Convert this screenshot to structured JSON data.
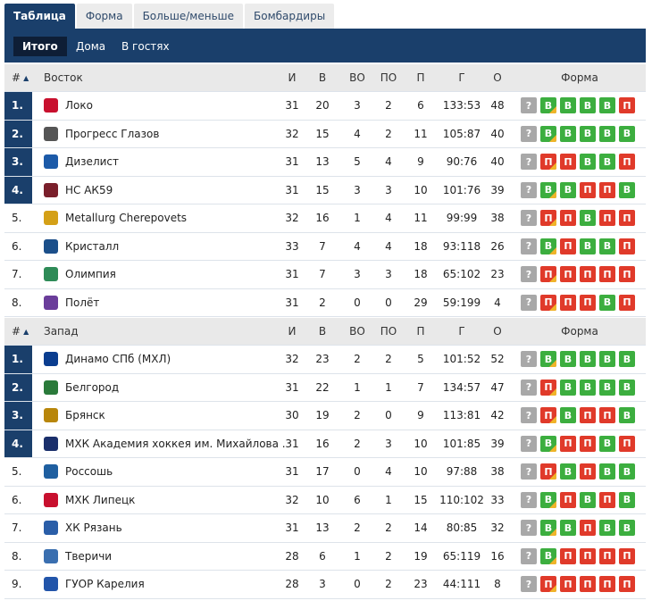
{
  "top_tabs": [
    "Таблица",
    "Форма",
    "Больше/меньше",
    "Бомбардиры"
  ],
  "sub_tabs": [
    "Итого",
    "Дома",
    "В гостях"
  ],
  "header_cols": {
    "rank": "#",
    "sort_icon": "triangle-up",
    "played": "И",
    "wins": "В",
    "ot_wins": "ВО",
    "ot_losses": "ПО",
    "losses": "П",
    "goals": "Г",
    "points": "О",
    "form": "Форма"
  },
  "form_unknown": "?",
  "conferences": [
    {
      "name": "Восток",
      "teams": [
        {
          "rank": "1.",
          "name": "Локо",
          "played": "31",
          "wins": "20",
          "ot_wins": "3",
          "ot_losses": "2",
          "losses": "6",
          "goals": "133:53",
          "points": "48",
          "form": [
            "В",
            "В",
            "В",
            "В",
            "П"
          ],
          "highlight": true,
          "logo_color": "#c8102e"
        },
        {
          "rank": "2.",
          "name": "Прогресс Глазов",
          "played": "32",
          "wins": "15",
          "ot_wins": "4",
          "ot_losses": "2",
          "losses": "11",
          "goals": "105:87",
          "points": "40",
          "form": [
            "В",
            "В",
            "В",
            "В",
            "В"
          ],
          "highlight": true,
          "logo_color": "#555555"
        },
        {
          "rank": "3.",
          "name": "Дизелист",
          "played": "31",
          "wins": "13",
          "ot_wins": "5",
          "ot_losses": "4",
          "losses": "9",
          "goals": "90:76",
          "points": "40",
          "form": [
            "П",
            "П",
            "В",
            "В",
            "П"
          ],
          "highlight": true,
          "logo_color": "#1c5aa8"
        },
        {
          "rank": "4.",
          "name": "НС АК59",
          "played": "31",
          "wins": "15",
          "ot_wins": "3",
          "ot_losses": "3",
          "losses": "10",
          "goals": "101:76",
          "points": "39",
          "form": [
            "В",
            "В",
            "П",
            "П",
            "В"
          ],
          "highlight": true,
          "logo_color": "#7a1f2b"
        },
        {
          "rank": "5.",
          "name": "Metallurg Cherepovets",
          "played": "32",
          "wins": "16",
          "ot_wins": "1",
          "ot_losses": "4",
          "losses": "11",
          "goals": "99:99",
          "points": "38",
          "form": [
            "П",
            "П",
            "В",
            "П",
            "П"
          ],
          "highlight": false,
          "logo_color": "#d4a017"
        },
        {
          "rank": "6.",
          "name": "Кристалл",
          "played": "33",
          "wins": "7",
          "ot_wins": "4",
          "ot_losses": "4",
          "losses": "18",
          "goals": "93:118",
          "points": "26",
          "form": [
            "В",
            "П",
            "В",
            "В",
            "П"
          ],
          "highlight": false,
          "logo_color": "#1b4f8a"
        },
        {
          "rank": "7.",
          "name": "Олимпия",
          "played": "31",
          "wins": "7",
          "ot_wins": "3",
          "ot_losses": "3",
          "losses": "18",
          "goals": "65:102",
          "points": "23",
          "form": [
            "П",
            "П",
            "П",
            "П",
            "П"
          ],
          "highlight": false,
          "logo_color": "#2e8b57"
        },
        {
          "rank": "8.",
          "name": "Полёт",
          "played": "31",
          "wins": "2",
          "ot_wins": "0",
          "ot_losses": "0",
          "losses": "29",
          "goals": "59:199",
          "points": "4",
          "form": [
            "П",
            "П",
            "П",
            "В",
            "П"
          ],
          "highlight": false,
          "logo_color": "#6a3d9a"
        }
      ]
    },
    {
      "name": "Запад",
      "teams": [
        {
          "rank": "1.",
          "name": "Динамо СПб (МХЛ)",
          "played": "32",
          "wins": "23",
          "ot_wins": "2",
          "ot_losses": "2",
          "losses": "5",
          "goals": "101:52",
          "points": "52",
          "form": [
            "В",
            "В",
            "В",
            "В",
            "В"
          ],
          "highlight": true,
          "logo_color": "#0a3d8f"
        },
        {
          "rank": "2.",
          "name": "Белгород",
          "played": "31",
          "wins": "22",
          "ot_wins": "1",
          "ot_losses": "1",
          "losses": "7",
          "goals": "134:57",
          "points": "47",
          "form": [
            "П",
            "В",
            "В",
            "В",
            "В"
          ],
          "highlight": true,
          "logo_color": "#2a7a3a"
        },
        {
          "rank": "3.",
          "name": "Брянск",
          "played": "30",
          "wins": "19",
          "ot_wins": "2",
          "ot_losses": "0",
          "losses": "9",
          "goals": "113:81",
          "points": "42",
          "form": [
            "П",
            "В",
            "П",
            "П",
            "В"
          ],
          "highlight": true,
          "logo_color": "#b8860b"
        },
        {
          "rank": "4.",
          "name": "МХК Академия хоккея им. Михайлова ...",
          "played": "31",
          "wins": "16",
          "ot_wins": "2",
          "ot_losses": "3",
          "losses": "10",
          "goals": "101:85",
          "points": "39",
          "form": [
            "В",
            "П",
            "П",
            "В",
            "П"
          ],
          "highlight": true,
          "logo_color": "#1a2f6b"
        },
        {
          "rank": "5.",
          "name": "Россошь",
          "played": "31",
          "wins": "17",
          "ot_wins": "0",
          "ot_losses": "4",
          "losses": "10",
          "goals": "97:88",
          "points": "38",
          "form": [
            "П",
            "В",
            "П",
            "В",
            "В"
          ],
          "highlight": false,
          "logo_color": "#1f5fa0"
        },
        {
          "rank": "6.",
          "name": "МХК Липецк",
          "played": "32",
          "wins": "10",
          "ot_wins": "6",
          "ot_losses": "1",
          "losses": "15",
          "goals": "110:102",
          "points": "33",
          "form": [
            "В",
            "П",
            "В",
            "П",
            "В"
          ],
          "highlight": false,
          "logo_color": "#c8102e"
        },
        {
          "rank": "7.",
          "name": "ХК Рязань",
          "played": "31",
          "wins": "13",
          "ot_wins": "2",
          "ot_losses": "2",
          "losses": "14",
          "goals": "80:85",
          "points": "32",
          "form": [
            "В",
            "В",
            "П",
            "В",
            "В"
          ],
          "highlight": false,
          "logo_color": "#2a5ea8"
        },
        {
          "rank": "8.",
          "name": "Тверичи",
          "played": "28",
          "wins": "6",
          "ot_wins": "1",
          "ot_losses": "2",
          "losses": "19",
          "goals": "65:119",
          "points": "16",
          "form": [
            "В",
            "П",
            "П",
            "П",
            "П"
          ],
          "highlight": false,
          "logo_color": "#3a6fb0"
        },
        {
          "rank": "9.",
          "name": "ГУОР Карелия",
          "played": "28",
          "wins": "3",
          "ot_wins": "0",
          "ot_losses": "2",
          "losses": "23",
          "goals": "44:111",
          "points": "8",
          "form": [
            "П",
            "П",
            "П",
            "П",
            "П"
          ],
          "highlight": false,
          "logo_color": "#2255aa"
        }
      ]
    }
  ],
  "colors": {
    "accent": "#1a3f6b",
    "win": "#3cae3f",
    "loss": "#e03a2a",
    "unknown": "#a8a8a8",
    "ot_corner": "#f0b429"
  }
}
